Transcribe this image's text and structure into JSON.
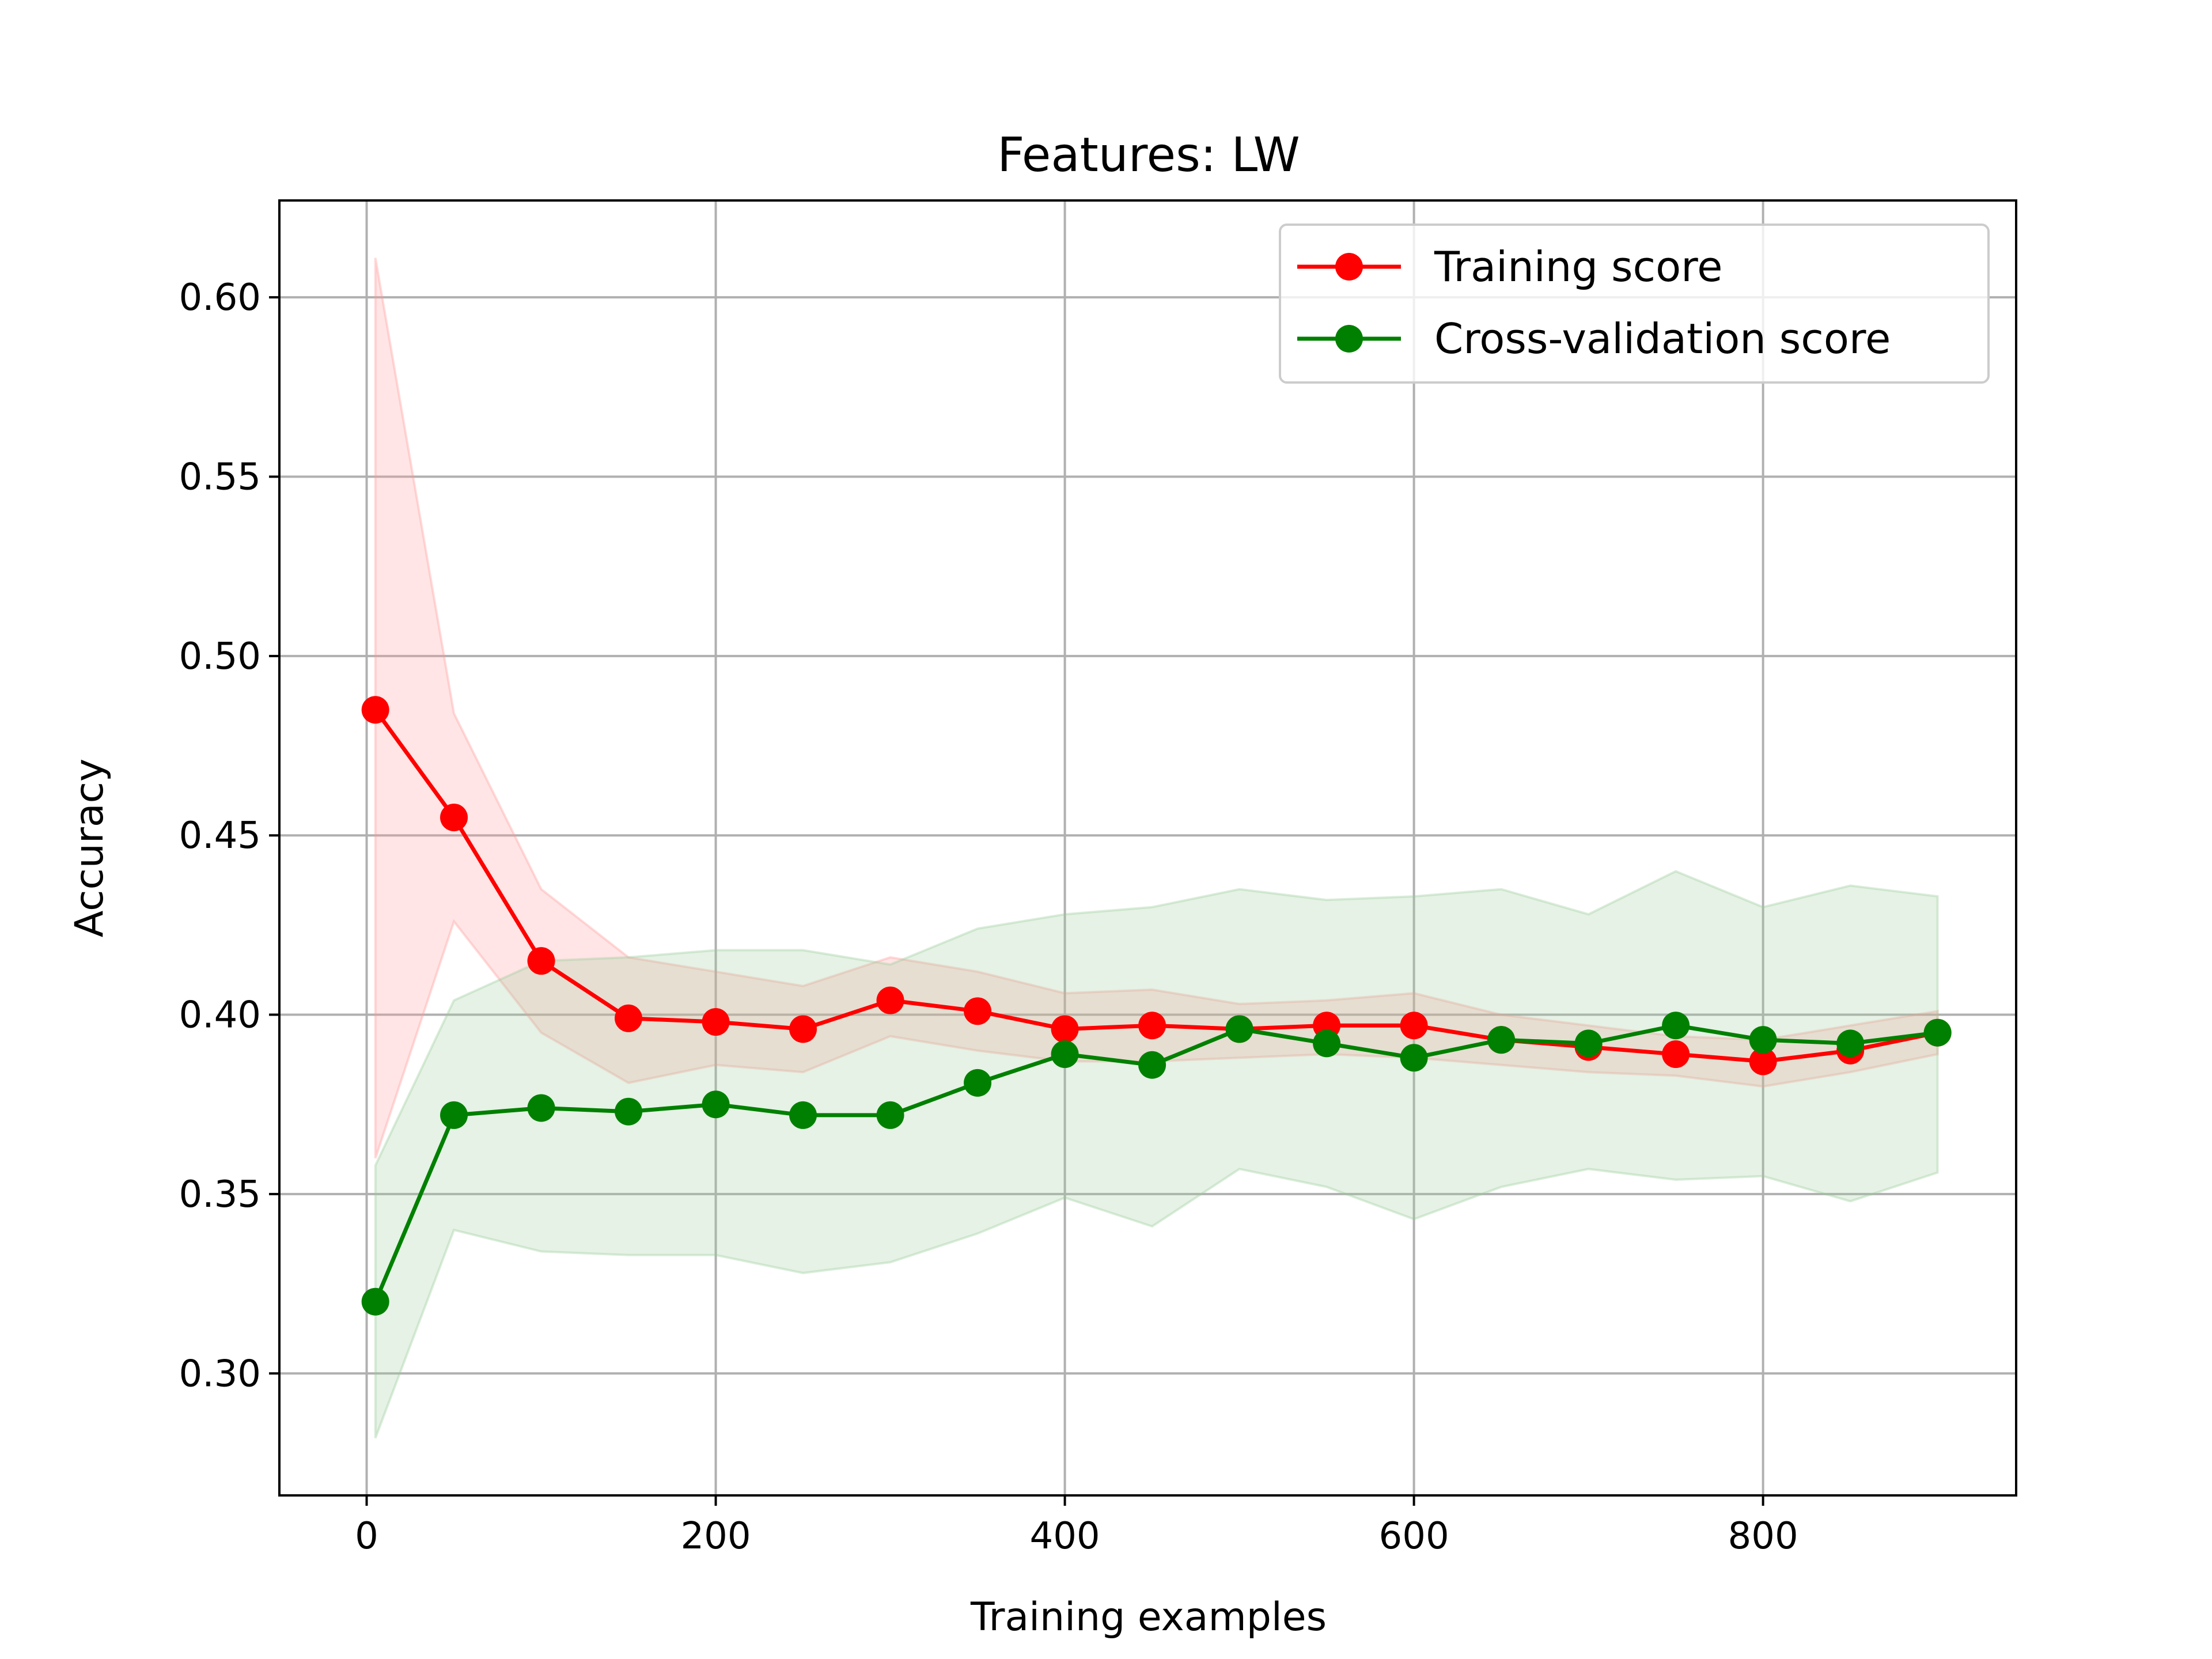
{
  "chart_data": {
    "type": "line",
    "title": "Features: LW",
    "xlabel": "Training examples",
    "ylabel": "Accuracy",
    "xlim": [
      -50,
      945
    ],
    "ylim": [
      0.266,
      0.627
    ],
    "xticks": [
      0,
      200,
      400,
      600,
      800
    ],
    "xtick_labels": [
      "0",
      "200",
      "400",
      "600",
      "800"
    ],
    "yticks": [
      0.3,
      0.35,
      0.4,
      0.45,
      0.5,
      0.55,
      0.6
    ],
    "ytick_labels": [
      "0.30",
      "0.35",
      "0.40",
      "0.45",
      "0.50",
      "0.55",
      "0.60"
    ],
    "grid": true,
    "legend_position": "top-right",
    "x": [
      5,
      50,
      100,
      150,
      200,
      250,
      300,
      350,
      400,
      450,
      500,
      550,
      600,
      650,
      700,
      750,
      800,
      850,
      900
    ],
    "series": [
      {
        "name": "Training score",
        "color": "#ff0000",
        "band_color": "#ff9999",
        "values": [
          0.485,
          0.455,
          0.415,
          0.399,
          0.398,
          0.396,
          0.404,
          0.401,
          0.396,
          0.397,
          0.396,
          0.397,
          0.397,
          0.393,
          0.391,
          0.389,
          0.387,
          0.39,
          0.395
        ],
        "band_upper": [
          0.611,
          0.484,
          0.435,
          0.416,
          0.412,
          0.408,
          0.416,
          0.412,
          0.406,
          0.407,
          0.403,
          0.404,
          0.406,
          0.4,
          0.397,
          0.394,
          0.393,
          0.397,
          0.401
        ],
        "band_lower": [
          0.36,
          0.426,
          0.395,
          0.381,
          0.386,
          0.384,
          0.394,
          0.39,
          0.387,
          0.387,
          0.388,
          0.389,
          0.388,
          0.386,
          0.384,
          0.383,
          0.38,
          0.384,
          0.389
        ]
      },
      {
        "name": "Cross-validation score",
        "color": "#008000",
        "band_color": "#99cc99",
        "values": [
          0.32,
          0.372,
          0.374,
          0.373,
          0.375,
          0.372,
          0.372,
          0.381,
          0.389,
          0.386,
          0.396,
          0.392,
          0.388,
          0.393,
          0.392,
          0.397,
          0.393,
          0.392,
          0.395
        ],
        "band_upper": [
          0.358,
          0.404,
          0.415,
          0.416,
          0.418,
          0.418,
          0.414,
          0.424,
          0.428,
          0.43,
          0.435,
          0.432,
          0.433,
          0.435,
          0.428,
          0.44,
          0.43,
          0.436,
          0.433
        ],
        "band_lower": [
          0.282,
          0.34,
          0.334,
          0.333,
          0.333,
          0.328,
          0.331,
          0.339,
          0.349,
          0.341,
          0.357,
          0.352,
          0.343,
          0.352,
          0.357,
          0.354,
          0.355,
          0.348,
          0.356
        ]
      }
    ]
  }
}
